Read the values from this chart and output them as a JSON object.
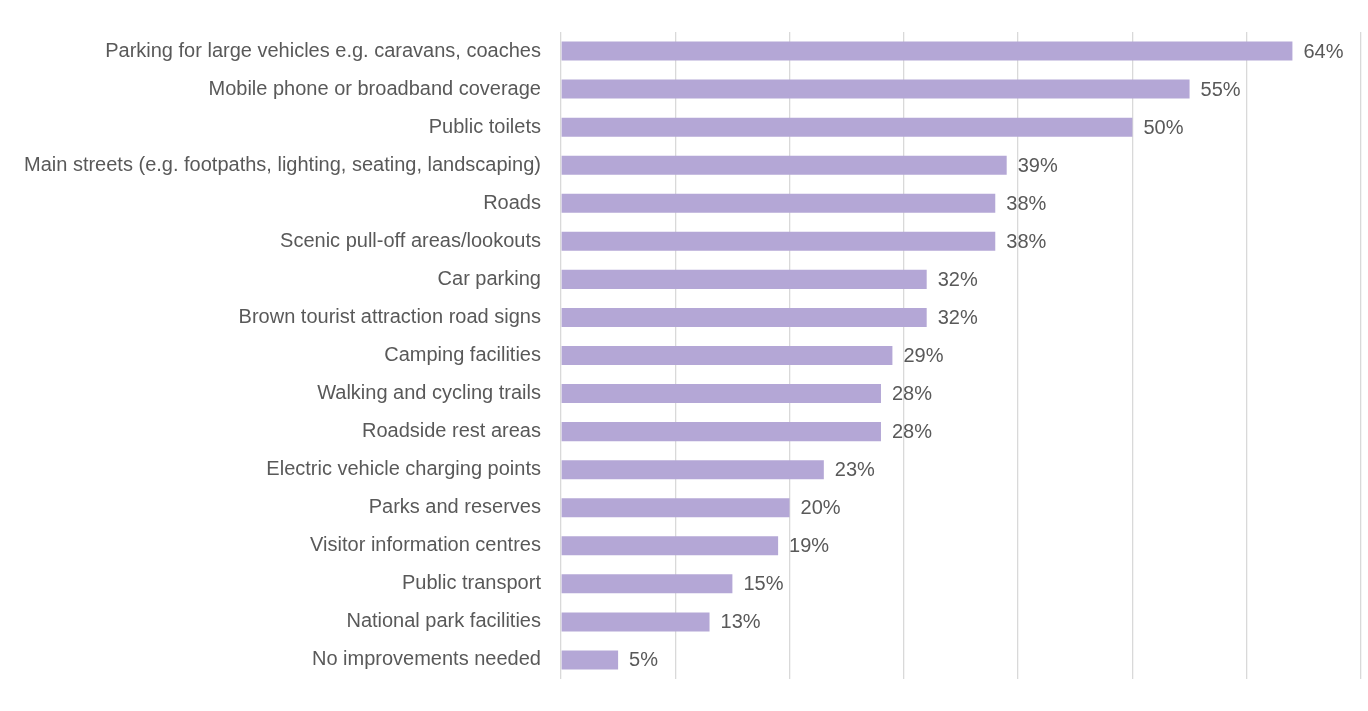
{
  "chart_data": {
    "type": "bar",
    "orientation": "horizontal",
    "categories": [
      "Parking for large vehicles e.g. caravans, coaches",
      "Mobile phone or broadband coverage",
      "Public toilets",
      "Main streets (e.g. footpaths, lighting, seating, landscaping)",
      "Roads",
      "Scenic pull-off areas/lookouts",
      "Car parking",
      "Brown tourist attraction road signs",
      "Camping facilities",
      "Walking and cycling trails",
      "Roadside rest areas",
      "Electric vehicle charging points",
      "Parks and reserves",
      "Visitor information centres",
      "Public transport",
      "National park facilities",
      "No improvements needed"
    ],
    "values": [
      64,
      55,
      50,
      39,
      38,
      38,
      32,
      32,
      29,
      28,
      28,
      23,
      20,
      19,
      15,
      13,
      5
    ],
    "value_labels": [
      "64%",
      "55%",
      "50%",
      "39%",
      "38%",
      "38%",
      "32%",
      "32%",
      "29%",
      "28%",
      "28%",
      "23%",
      "20%",
      "19%",
      "15%",
      "13%",
      "5%"
    ],
    "color": "#b4a7d6",
    "xlim": [
      0,
      70
    ],
    "xticks": [
      {
        "value": 0,
        "label": null
      },
      {
        "value": 10,
        "label": null
      },
      {
        "value": 20,
        "label": null
      },
      {
        "value": 30,
        "label": null
      },
      {
        "value": 40,
        "label": null
      },
      {
        "value": 50,
        "label": null
      },
      {
        "value": 60,
        "label": null
      },
      {
        "value": 70,
        "label": null
      }
    ],
    "grid": "x",
    "tick_labels": "y",
    "legend": false
  }
}
